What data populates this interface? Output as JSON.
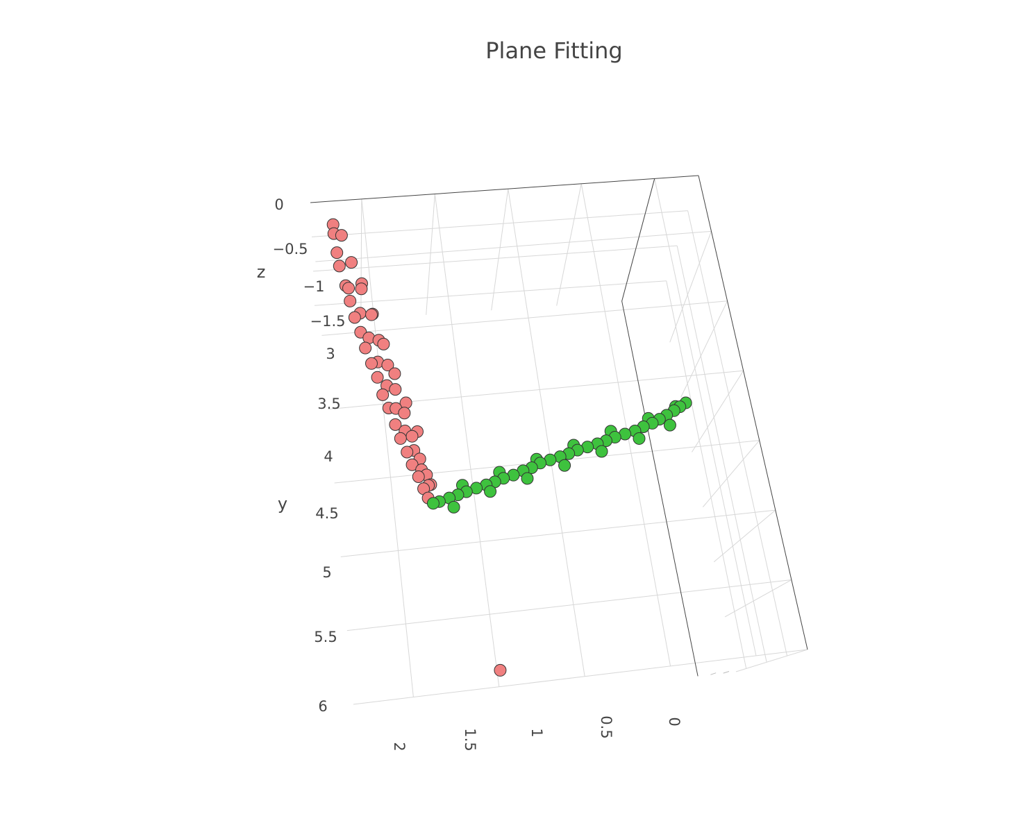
{
  "chart_data": {
    "type": "scatter3d",
    "title": "Plane Fitting",
    "axes": {
      "x": {
        "title": "",
        "range": [
          -0.3,
          2.35
        ],
        "ticks": [
          "2",
          "1.5",
          "1",
          "0.5",
          "0"
        ]
      },
      "y": {
        "title": "y",
        "range": [
          2.6,
          6.0
        ],
        "ticks": [
          "3",
          "3.5",
          "4",
          "4.5",
          "5",
          "5.5",
          "6"
        ]
      },
      "z": {
        "title": "z",
        "range": [
          -1.75,
          0.0
        ],
        "ticks": [
          "0",
          "−0.5",
          "−1",
          "−1.5"
        ]
      }
    },
    "grid": true,
    "legend": "none",
    "series": [
      {
        "color": "#f08080",
        "marker_outline": "#333333",
        "description_hint": "vertical plane: x ≈ 1.8–2.1, y ≈ 2.6–4.2, z from −1.6 to −0.2, plus one outlier near x 1.5, y 5.8",
        "points": [
          [
            2.2,
            2.62,
            -0.3
          ],
          [
            2.2,
            2.66,
            -0.35
          ],
          [
            2.19,
            2.75,
            -0.45
          ],
          [
            2.18,
            2.8,
            -0.55
          ],
          [
            2.15,
            2.9,
            -0.65
          ],
          [
            2.13,
            2.97,
            -0.75
          ],
          [
            2.11,
            3.05,
            -0.85
          ],
          [
            2.08,
            3.12,
            -0.95
          ],
          [
            2.06,
            3.2,
            -1.05
          ],
          [
            2.03,
            3.28,
            -1.15
          ],
          [
            2.0,
            3.35,
            -1.25
          ],
          [
            1.98,
            3.45,
            -1.35
          ],
          [
            1.95,
            3.52,
            -1.45
          ],
          [
            1.92,
            3.62,
            -1.55
          ],
          [
            1.9,
            3.72,
            -1.6
          ],
          [
            1.87,
            3.82,
            -1.65
          ],
          [
            1.85,
            3.92,
            -1.68
          ],
          [
            1.82,
            4.02,
            -1.7
          ],
          [
            1.8,
            4.12,
            -1.72
          ],
          [
            1.78,
            4.2,
            -1.73
          ],
          [
            2.15,
            2.7,
            -0.3
          ],
          [
            2.1,
            2.85,
            -0.4
          ],
          [
            2.05,
            3.0,
            -0.5
          ],
          [
            2.0,
            3.15,
            -0.6
          ],
          [
            1.97,
            3.3,
            -0.7
          ],
          [
            1.93,
            3.45,
            -0.8
          ],
          [
            1.9,
            3.6,
            -0.9
          ],
          [
            1.86,
            3.75,
            -1.0
          ],
          [
            1.83,
            3.9,
            -1.1
          ],
          [
            1.8,
            4.05,
            -1.2
          ],
          [
            1.77,
            4.15,
            -1.3
          ],
          [
            1.75,
            4.2,
            -1.4
          ],
          [
            2.12,
            2.8,
            -0.9
          ],
          [
            2.06,
            2.95,
            -1.0
          ],
          [
            2.02,
            3.1,
            -1.1
          ],
          [
            1.98,
            3.25,
            -1.2
          ],
          [
            1.94,
            3.4,
            -1.3
          ],
          [
            1.9,
            3.55,
            -1.4
          ],
          [
            1.86,
            3.7,
            -1.5
          ],
          [
            1.82,
            3.85,
            -1.55
          ],
          [
            1.79,
            4.0,
            -1.6
          ],
          [
            1.76,
            4.12,
            -1.65
          ],
          [
            2.05,
            3.05,
            -0.3
          ],
          [
            2.0,
            3.25,
            -0.35
          ],
          [
            1.95,
            3.45,
            -0.4
          ],
          [
            1.9,
            3.65,
            -0.45
          ],
          [
            1.85,
            3.85,
            -0.5
          ],
          [
            1.8,
            4.05,
            -0.55
          ],
          [
            1.5,
            5.8,
            -1.2
          ]
        ]
      },
      {
        "color": "#3ec23e",
        "marker_outline": "#333333",
        "description_hint": "horizontal plane at z ≈ −1.7 spanning x from 1.8 down to about −0.3 along y ≈ 3.5–4.3",
        "points": [
          [
            1.75,
            4.25,
            -1.73
          ],
          [
            1.7,
            4.24,
            -1.73
          ],
          [
            1.62,
            4.22,
            -1.72
          ],
          [
            1.55,
            4.2,
            -1.72
          ],
          [
            1.48,
            4.18,
            -1.72
          ],
          [
            1.4,
            4.16,
            -1.71
          ],
          [
            1.32,
            4.14,
            -1.71
          ],
          [
            1.25,
            4.12,
            -1.71
          ],
          [
            1.18,
            4.1,
            -1.7
          ],
          [
            1.1,
            4.08,
            -1.7
          ],
          [
            1.02,
            4.05,
            -1.7
          ],
          [
            0.95,
            4.03,
            -1.7
          ],
          [
            0.88,
            4.0,
            -1.69
          ],
          [
            0.8,
            3.98,
            -1.69
          ],
          [
            0.72,
            3.96,
            -1.69
          ],
          [
            0.65,
            3.94,
            -1.69
          ],
          [
            0.58,
            3.92,
            -1.68
          ],
          [
            0.5,
            3.9,
            -1.68
          ],
          [
            0.42,
            3.88,
            -1.68
          ],
          [
            0.35,
            3.86,
            -1.68
          ],
          [
            0.28,
            3.84,
            -1.67
          ],
          [
            0.2,
            3.82,
            -1.67
          ],
          [
            0.12,
            3.8,
            -1.67
          ],
          [
            0.05,
            3.77,
            -1.67
          ],
          [
            -0.02,
            3.75,
            -1.66
          ],
          [
            -0.08,
            3.72,
            -1.66
          ],
          [
            -0.14,
            3.69,
            -1.66
          ],
          [
            -0.2,
            3.66,
            -1.65
          ],
          [
            -0.25,
            3.63,
            -1.65
          ],
          [
            -0.3,
            3.6,
            -1.65
          ],
          [
            1.6,
            4.3,
            -1.73
          ],
          [
            1.3,
            4.2,
            -1.71
          ],
          [
            1.0,
            4.12,
            -1.7
          ],
          [
            0.7,
            4.04,
            -1.69
          ],
          [
            0.4,
            3.95,
            -1.68
          ],
          [
            0.1,
            3.87,
            -1.67
          ],
          [
            -0.15,
            3.78,
            -1.66
          ],
          [
            1.5,
            4.12,
            -1.72
          ],
          [
            1.2,
            4.04,
            -1.71
          ],
          [
            0.9,
            3.96,
            -1.7
          ],
          [
            0.6,
            3.87,
            -1.69
          ],
          [
            0.3,
            3.78,
            -1.68
          ],
          [
            0.0,
            3.7,
            -1.67
          ],
          [
            -0.22,
            3.62,
            -1.66
          ]
        ]
      }
    ]
  }
}
